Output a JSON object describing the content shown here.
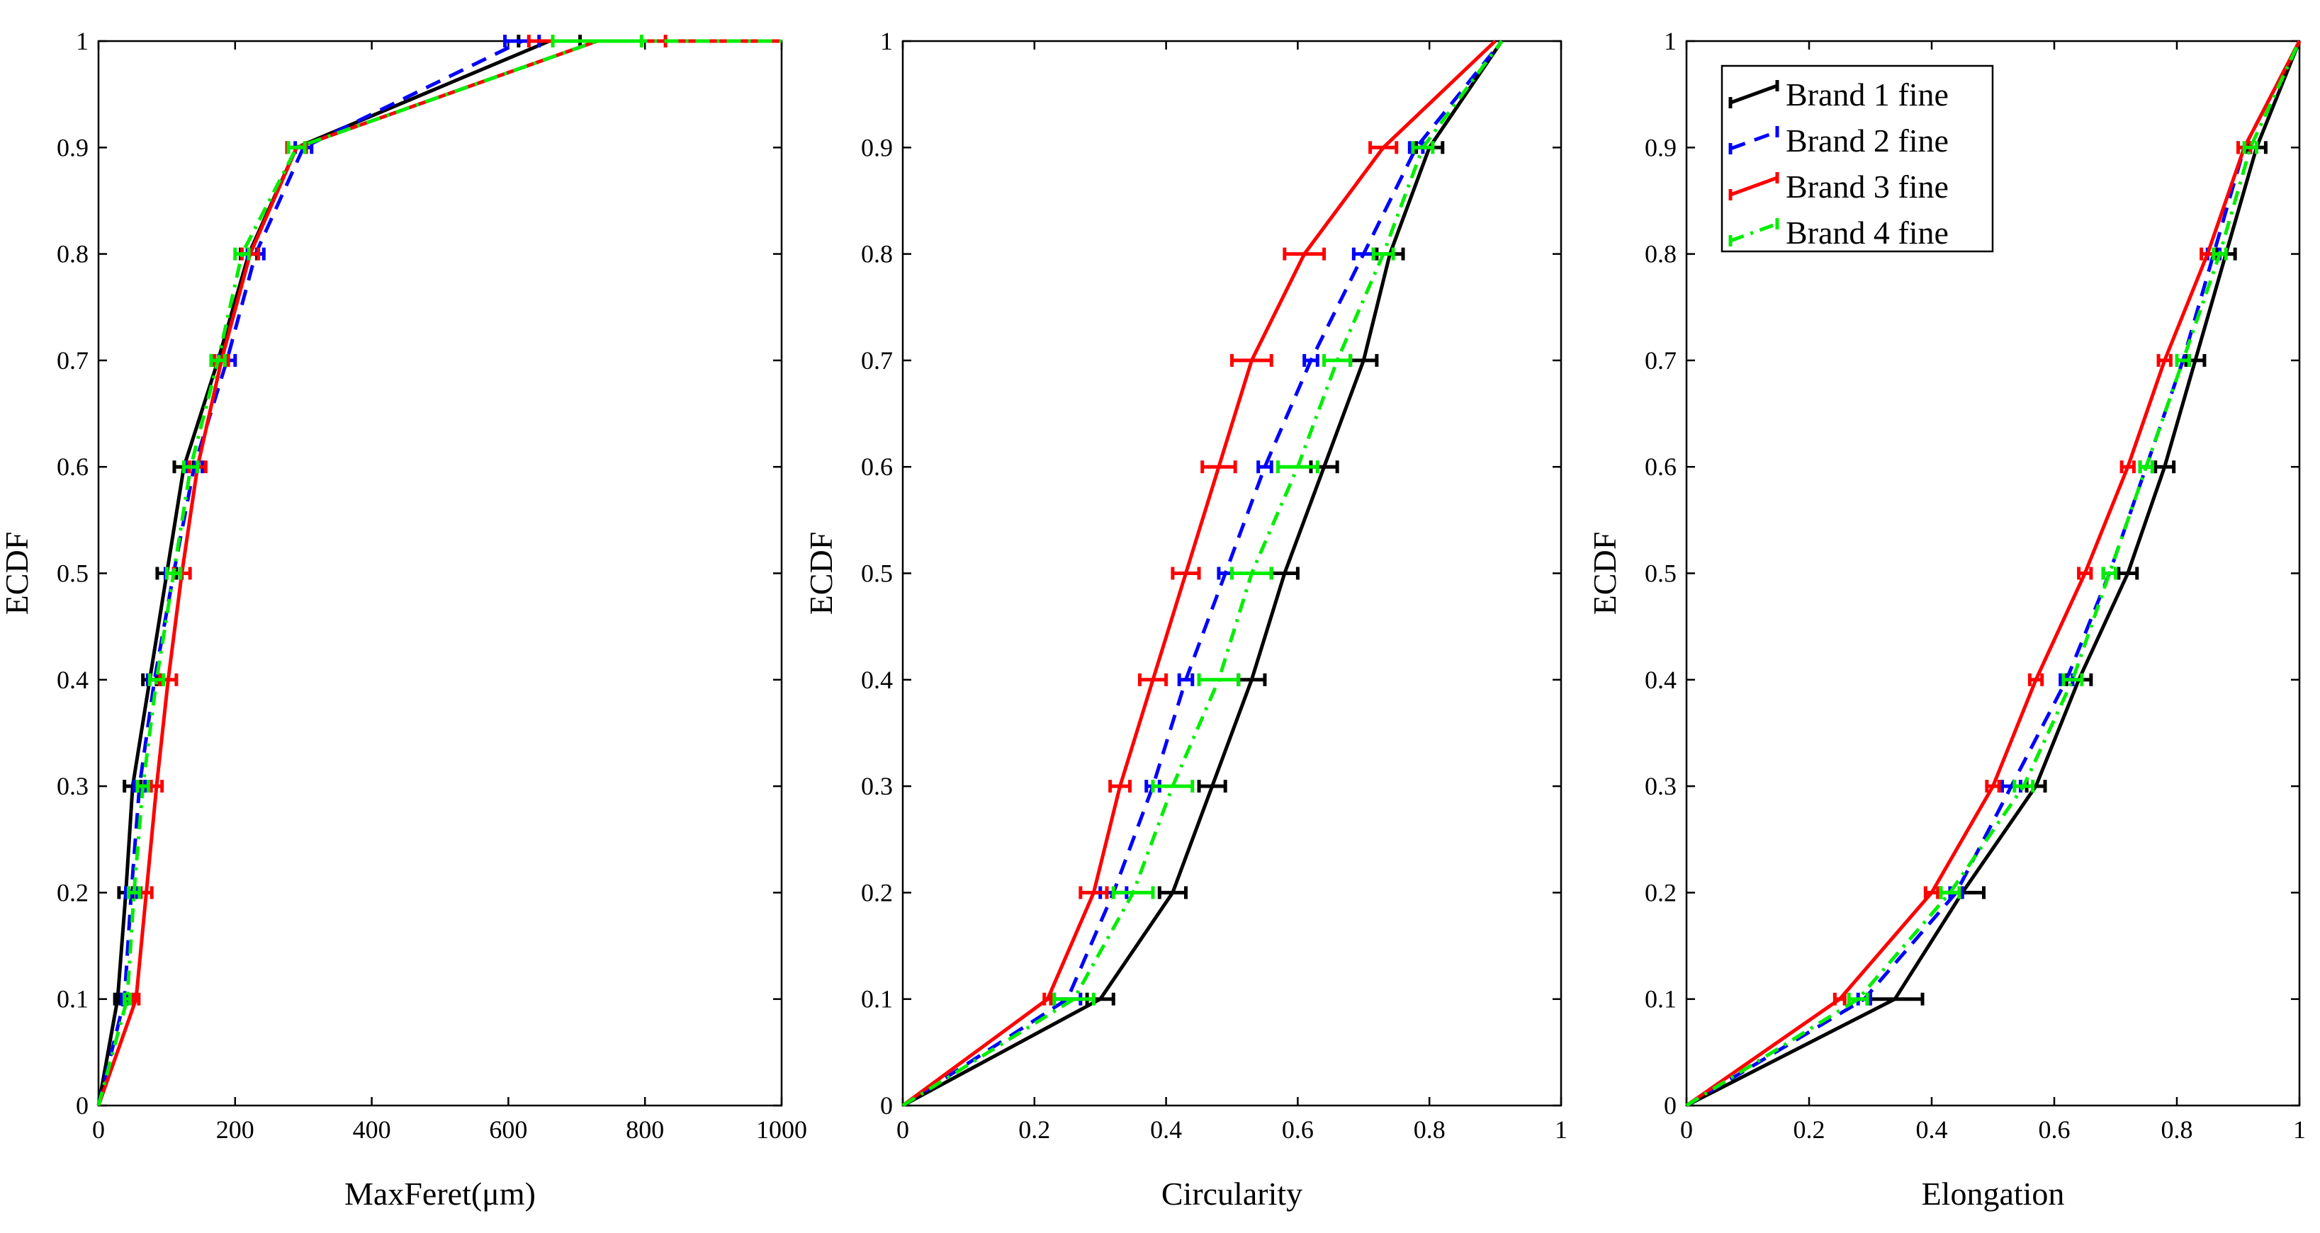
{
  "chart_data": [
    {
      "type": "line",
      "title": "",
      "xlabel": "MaxFeret(μm)",
      "ylabel": "ECDF",
      "xlim": [
        0,
        1000
      ],
      "ylim": [
        0,
        1
      ],
      "xticks": [
        0,
        200,
        400,
        600,
        800,
        1000
      ],
      "xtick_labels": [
        "0",
        "200",
        "400",
        "600",
        "800",
        "1000"
      ],
      "yticks": [
        0,
        0.1,
        0.2,
        0.3,
        0.4,
        0.5,
        0.6,
        0.7,
        0.8,
        0.9,
        1
      ],
      "ytick_labels": [
        "0",
        "0.1",
        "0.2",
        "0.3",
        "0.4",
        "0.5",
        "0.6",
        "0.7",
        "0.8",
        "0.9",
        "1"
      ],
      "grid": false,
      "series": [
        {
          "name": "Brand 1 fine",
          "color": "#000000",
          "dash": "solid",
          "x": [
            0,
            28,
            40,
            50,
            75,
            100,
            125,
            175,
            220,
            290,
            660,
            1000
          ],
          "err": [
            0,
            4,
            10,
            12,
            10,
            14,
            14,
            10,
            12,
            14,
            45,
            0
          ],
          "y": [
            0,
            0.1,
            0.2,
            0.3,
            0.4,
            0.5,
            0.6,
            0.7,
            0.8,
            0.9,
            1,
            1
          ]
        },
        {
          "name": "Brand 2 fine",
          "color": "#0000ff",
          "dash": "dashed",
          "x": [
            0,
            38,
            48,
            60,
            82,
            110,
            140,
            188,
            230,
            300,
            620,
            1000
          ],
          "err": [
            0,
            4,
            8,
            8,
            10,
            12,
            12,
            12,
            12,
            12,
            25,
            0
          ],
          "y": [
            0,
            0.1,
            0.2,
            0.3,
            0.4,
            0.5,
            0.6,
            0.7,
            0.8,
            0.9,
            1,
            1
          ]
        },
        {
          "name": "Brand 3 fine",
          "color": "#ff0000",
          "dash": "solid",
          "x": [
            0,
            55,
            70,
            85,
            102,
            122,
            145,
            180,
            222,
            290,
            730,
            1000
          ],
          "err": [
            0,
            4,
            8,
            8,
            12,
            12,
            12,
            10,
            12,
            14,
            100,
            0
          ],
          "y": [
            0,
            0.1,
            0.2,
            0.3,
            0.4,
            0.5,
            0.6,
            0.7,
            0.8,
            0.9,
            1,
            1
          ]
        },
        {
          "name": "Brand 4 fine",
          "color": "#00ee00",
          "dash": "dashdot",
          "x": [
            0,
            42,
            52,
            65,
            85,
            110,
            135,
            175,
            210,
            290,
            730,
            1000
          ],
          "err": [
            0,
            4,
            8,
            8,
            10,
            10,
            10,
            10,
            10,
            12,
            65,
            0
          ],
          "y": [
            0,
            0.1,
            0.2,
            0.3,
            0.4,
            0.5,
            0.6,
            0.7,
            0.8,
            0.9,
            1,
            1
          ]
        }
      ]
    },
    {
      "type": "line",
      "title": "",
      "xlabel": "Circularity",
      "ylabel": "ECDF",
      "xlim": [
        0,
        1
      ],
      "ylim": [
        0,
        1
      ],
      "xticks": [
        0,
        0.2,
        0.4,
        0.6,
        0.8,
        1
      ],
      "xtick_labels": [
        "0",
        "0.2",
        "0.4",
        "0.6",
        "0.8",
        "1"
      ],
      "yticks": [
        0,
        0.1,
        0.2,
        0.3,
        0.4,
        0.5,
        0.6,
        0.7,
        0.8,
        0.9,
        1
      ],
      "ytick_labels": [
        "0",
        "0.1",
        "0.2",
        "0.3",
        "0.4",
        "0.5",
        "0.6",
        "0.7",
        "0.8",
        "0.9",
        "1"
      ],
      "grid": false,
      "series": [
        {
          "name": "Brand 1 fine",
          "color": "#000000",
          "dash": "solid",
          "x": [
            0,
            0.3,
            0.41,
            0.47,
            0.53,
            0.58,
            0.64,
            0.7,
            0.74,
            0.8,
            0.91
          ],
          "err": [
            0,
            0.02,
            0.02,
            0.02,
            0.02,
            0.02,
            0.02,
            0.02,
            0.02,
            0.02,
            0
          ],
          "y": [
            0,
            0.1,
            0.2,
            0.3,
            0.4,
            0.5,
            0.6,
            0.7,
            0.8,
            0.9,
            1
          ]
        },
        {
          "name": "Brand 2 fine",
          "color": "#0000ff",
          "dash": "dashed",
          "x": [
            0,
            0.25,
            0.32,
            0.38,
            0.43,
            0.49,
            0.55,
            0.62,
            0.7,
            0.78,
            0.91
          ],
          "err": [
            0,
            0.02,
            0.02,
            0.01,
            0.01,
            0.01,
            0.01,
            0.01,
            0.015,
            0.01,
            0
          ],
          "y": [
            0,
            0.1,
            0.2,
            0.3,
            0.4,
            0.5,
            0.6,
            0.7,
            0.8,
            0.9,
            1
          ]
        },
        {
          "name": "Brand 3 fine",
          "color": "#ff0000",
          "dash": "solid",
          "x": [
            0,
            0.22,
            0.29,
            0.33,
            0.38,
            0.43,
            0.48,
            0.53,
            0.61,
            0.73,
            0.9
          ],
          "err": [
            0,
            0.005,
            0.02,
            0.015,
            0.02,
            0.02,
            0.025,
            0.03,
            0.03,
            0.02,
            0
          ],
          "y": [
            0,
            0.1,
            0.2,
            0.3,
            0.4,
            0.5,
            0.6,
            0.7,
            0.8,
            0.9,
            1
          ]
        },
        {
          "name": "Brand 4 fine",
          "color": "#00ee00",
          "dash": "dashdot",
          "x": [
            0,
            0.26,
            0.35,
            0.41,
            0.48,
            0.53,
            0.6,
            0.66,
            0.73,
            0.79,
            0.91
          ],
          "err": [
            0,
            0.03,
            0.03,
            0.03,
            0.03,
            0.03,
            0.03,
            0.02,
            0.015,
            0.015,
            0
          ],
          "y": [
            0,
            0.1,
            0.2,
            0.3,
            0.4,
            0.5,
            0.6,
            0.7,
            0.8,
            0.9,
            1
          ]
        }
      ]
    },
    {
      "type": "line",
      "title": "",
      "xlabel": "Elongation",
      "ylabel": "ECDF",
      "xlim": [
        0,
        1
      ],
      "ylim": [
        0,
        1
      ],
      "xticks": [
        0,
        0.2,
        0.4,
        0.6,
        0.8,
        1
      ],
      "xtick_labels": [
        "0",
        "0.2",
        "0.4",
        "0.6",
        "0.8",
        "1"
      ],
      "yticks": [
        0,
        0.1,
        0.2,
        0.3,
        0.4,
        0.5,
        0.6,
        0.7,
        0.8,
        0.9,
        1
      ],
      "ytick_labels": [
        "0",
        "0.1",
        "0.2",
        "0.3",
        "0.4",
        "0.5",
        "0.6",
        "0.7",
        "0.8",
        "0.9",
        "1"
      ],
      "grid": false,
      "legend": "top-left",
      "series": [
        {
          "name": "Brand 1 fine",
          "color": "#000000",
          "dash": "solid",
          "x": [
            0,
            0.34,
            0.45,
            0.57,
            0.64,
            0.72,
            0.78,
            0.83,
            0.88,
            0.93,
            1
          ],
          "err": [
            0,
            0.045,
            0.035,
            0.015,
            0.02,
            0.015,
            0.015,
            0.015,
            0.015,
            0.015,
            0
          ],
          "y": [
            0,
            0.1,
            0.2,
            0.3,
            0.4,
            0.5,
            0.6,
            0.7,
            0.8,
            0.9,
            1
          ]
        },
        {
          "name": "Brand 2 fine",
          "color": "#0000ff",
          "dash": "dashed",
          "x": [
            0,
            0.29,
            0.44,
            0.53,
            0.62,
            0.69,
            0.75,
            0.81,
            0.86,
            0.91,
            1
          ],
          "err": [
            0,
            0.01,
            0.01,
            0.015,
            0.01,
            0.01,
            0.01,
            0.01,
            0.01,
            0.01,
            0
          ],
          "y": [
            0,
            0.1,
            0.2,
            0.3,
            0.4,
            0.5,
            0.6,
            0.7,
            0.8,
            0.9,
            1
          ]
        },
        {
          "name": "Brand 3 fine",
          "color": "#ff0000",
          "dash": "solid",
          "x": [
            0,
            0.25,
            0.4,
            0.5,
            0.57,
            0.65,
            0.72,
            0.78,
            0.85,
            0.91,
            1
          ],
          "err": [
            0,
            0.008,
            0.01,
            0.01,
            0.01,
            0.01,
            0.01,
            0.01,
            0.01,
            0.01,
            0
          ],
          "y": [
            0,
            0.1,
            0.2,
            0.3,
            0.4,
            0.5,
            0.6,
            0.7,
            0.8,
            0.9,
            1
          ]
        },
        {
          "name": "Brand 4 fine",
          "color": "#00ee00",
          "dash": "dashdot",
          "x": [
            0,
            0.28,
            0.43,
            0.55,
            0.63,
            0.69,
            0.75,
            0.81,
            0.87,
            0.92,
            1
          ],
          "err": [
            0,
            0.015,
            0.015,
            0.015,
            0.015,
            0.01,
            0.01,
            0.01,
            0.01,
            0.01,
            0
          ],
          "y": [
            0,
            0.1,
            0.2,
            0.3,
            0.4,
            0.5,
            0.6,
            0.7,
            0.8,
            0.9,
            1
          ]
        }
      ]
    }
  ]
}
